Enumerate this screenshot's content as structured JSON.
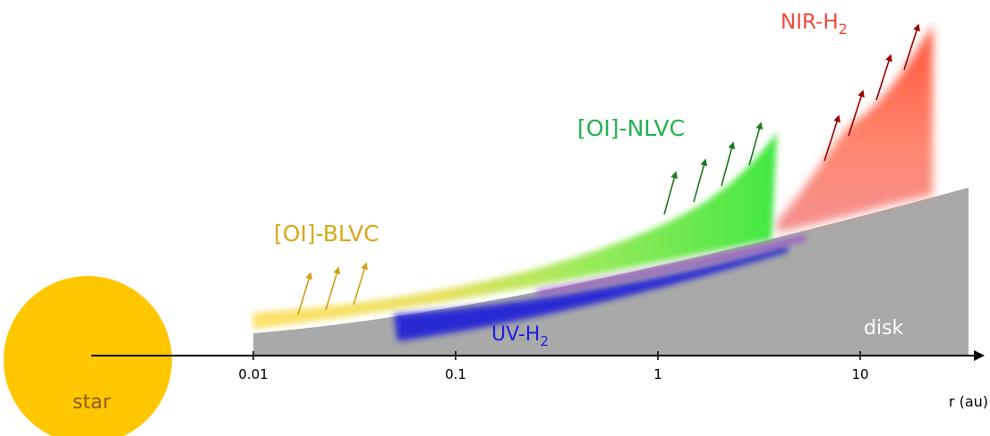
{
  "labels": {
    "star": "star",
    "disk": "disk",
    "oi_blvc": "[OI]-BLVC",
    "oi_nlvc": "[OI]-NLVC",
    "uv_h2_main": "UV-H",
    "uv_h2_sub": "2",
    "nir_h2_main": "NIR-H",
    "nir_h2_sub": "2"
  },
  "axis": {
    "label": "r (au)",
    "scale": "log",
    "ticks": [
      "0.01",
      "0.1",
      "1",
      "10"
    ]
  },
  "colors": {
    "star": "#FFC700",
    "star_text": "#8B5A1E",
    "disk": "#A9A9A9",
    "blvc": "#F5C400",
    "blvc_text": "#D7A91B",
    "nlvc": "#37E637",
    "nlvc_text": "#22B24C",
    "uv_h2": "#1F1FD9",
    "uv_h2_text": "#1E1EE0",
    "nir_h2": "#FF5A3C",
    "nir_h2_text": "#F04A3A",
    "arrow_gold": "#D4A017",
    "arrow_green": "#1C7A1C",
    "arrow_red": "#9B0000"
  }
}
